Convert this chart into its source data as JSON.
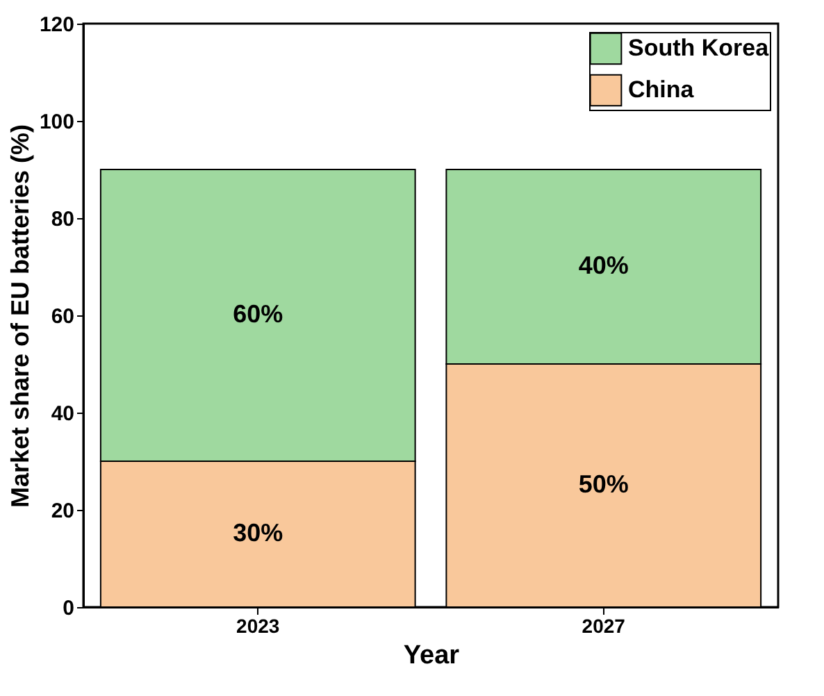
{
  "chart_data": {
    "type": "bar",
    "stacked": true,
    "xlabel": "Year",
    "ylabel": "Market share of EU batteries (%)",
    "categories": [
      "2023",
      "2027"
    ],
    "series": [
      {
        "name": "China",
        "color": "#f9c89b",
        "values": [
          30,
          50
        ],
        "value_labels": [
          "30%",
          "50%"
        ]
      },
      {
        "name": "South Korea",
        "color": "#9fd99f",
        "values": [
          60,
          40
        ],
        "value_labels": [
          "60%",
          "40%"
        ]
      }
    ],
    "ylim": [
      0,
      120
    ],
    "yticks": [
      0,
      20,
      40,
      60,
      80,
      100,
      120
    ],
    "grid": false,
    "legend": "top right"
  }
}
